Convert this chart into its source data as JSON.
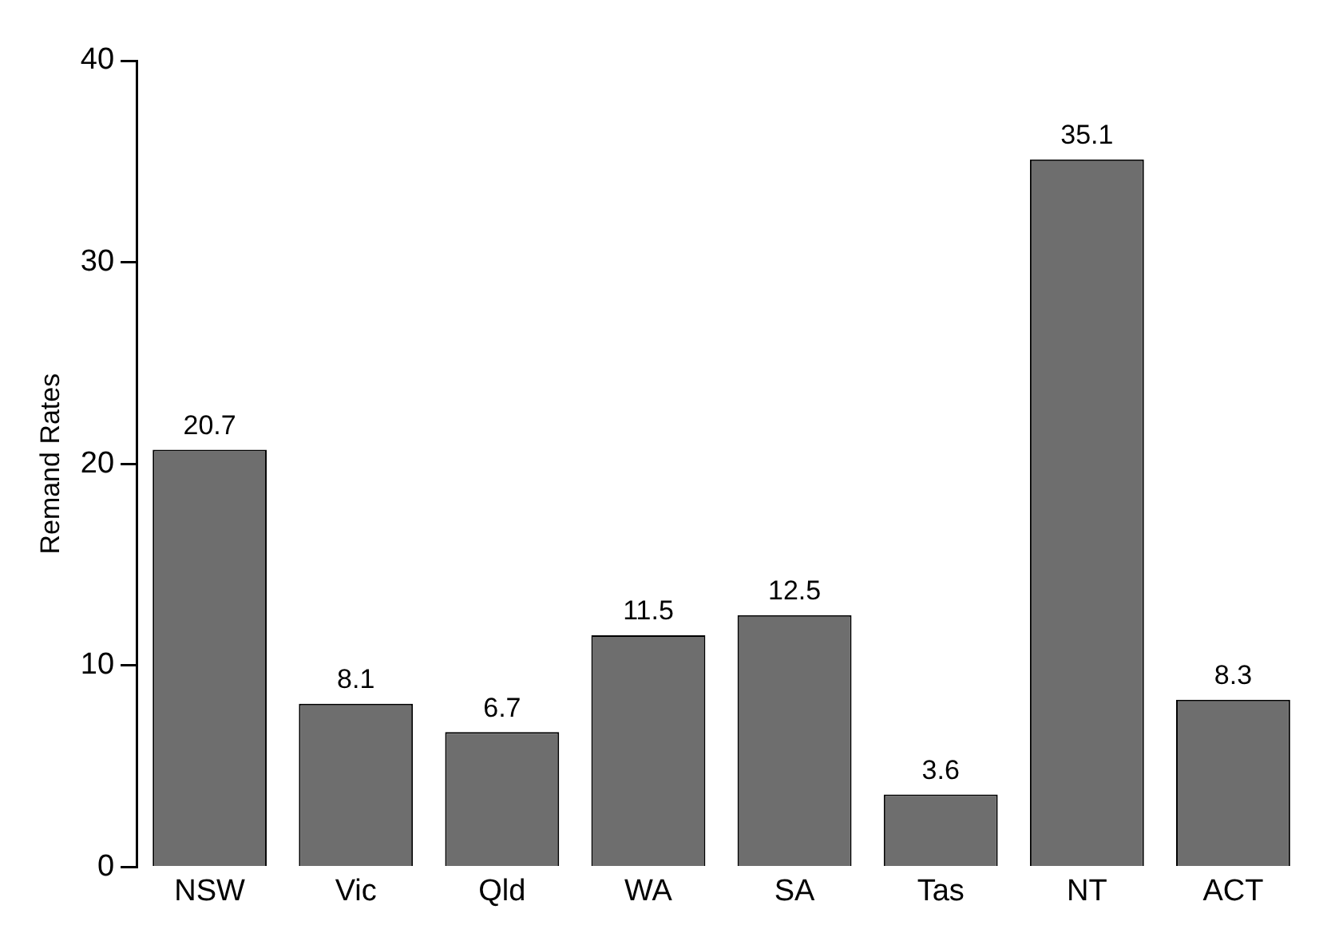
{
  "chart_data": {
    "type": "bar",
    "ylabel": "Remand Rates",
    "categories": [
      "NSW",
      "Vic",
      "Qld",
      "WA",
      "SA",
      "Tas",
      "NT",
      "ACT"
    ],
    "values": [
      20.7,
      8.1,
      6.7,
      11.5,
      12.5,
      3.6,
      35.1,
      8.3
    ],
    "color": "#6e6e6e",
    "ylim": [
      0,
      40
    ],
    "yticks": [
      0,
      10,
      20,
      30,
      40
    ],
    "grid": false,
    "data_labels": true
  }
}
